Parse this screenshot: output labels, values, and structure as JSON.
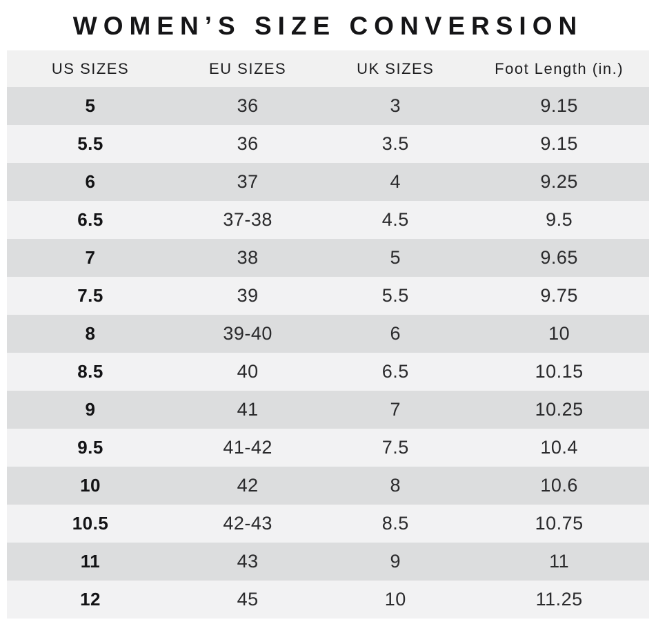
{
  "title": "WOMEN’S SIZE CONVERSION",
  "chart_data": {
    "type": "table",
    "title": "WOMEN’S SIZE CONVERSION",
    "columns": [
      "US SIZES",
      "EU SIZES",
      "UK SIZES",
      "Foot Length (in.)"
    ],
    "rows": [
      [
        "5",
        "36",
        "3",
        "9.15"
      ],
      [
        "5.5",
        "36",
        "3.5",
        "9.15"
      ],
      [
        "6",
        "37",
        "4",
        "9.25"
      ],
      [
        "6.5",
        "37-38",
        "4.5",
        "9.5"
      ],
      [
        "7",
        "38",
        "5",
        "9.65"
      ],
      [
        "7.5",
        "39",
        "5.5",
        "9.75"
      ],
      [
        "8",
        "39-40",
        "6",
        "10"
      ],
      [
        "8.5",
        "40",
        "6.5",
        "10.15"
      ],
      [
        "9",
        "41",
        "7",
        "10.25"
      ],
      [
        "9.5",
        "41-42",
        "7.5",
        "10.4"
      ],
      [
        "10",
        "42",
        "8",
        "10.6"
      ],
      [
        "10.5",
        "42-43",
        "8.5",
        "10.75"
      ],
      [
        "11",
        "43",
        "9",
        "11"
      ],
      [
        "12",
        "45",
        "10",
        "11.25"
      ]
    ],
    "layout": {
      "row_alternation_start": "dark",
      "bold_column": "US SIZES"
    }
  },
  "colors": {
    "background": "#ffffff",
    "header_row_bg": "#f1f1f1",
    "row_dark_bg": "#dcddde",
    "row_light_bg": "#f2f2f3",
    "text": "#1d1d1f"
  }
}
